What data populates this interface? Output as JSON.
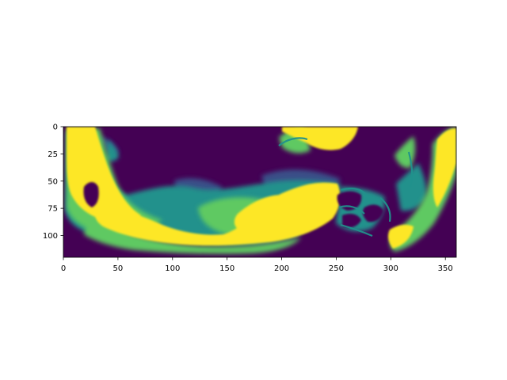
{
  "chart_data": {
    "type": "heatmap",
    "title": "",
    "xlabel": "",
    "ylabel": "",
    "xlim": [
      0,
      360
    ],
    "ylim": [
      120,
      0
    ],
    "x_ticks": [
      0,
      50,
      100,
      150,
      200,
      250,
      300,
      350
    ],
    "y_ticks": [
      0,
      25,
      50,
      75,
      100
    ],
    "colormap": "viridis",
    "colormap_stops": [
      "#440154",
      "#3b528b",
      "#21918c",
      "#5ec962",
      "#fde725"
    ],
    "background_value_color": "#440154",
    "grid": false,
    "legend": "none",
    "shape": [
      120,
      360
    ]
  }
}
